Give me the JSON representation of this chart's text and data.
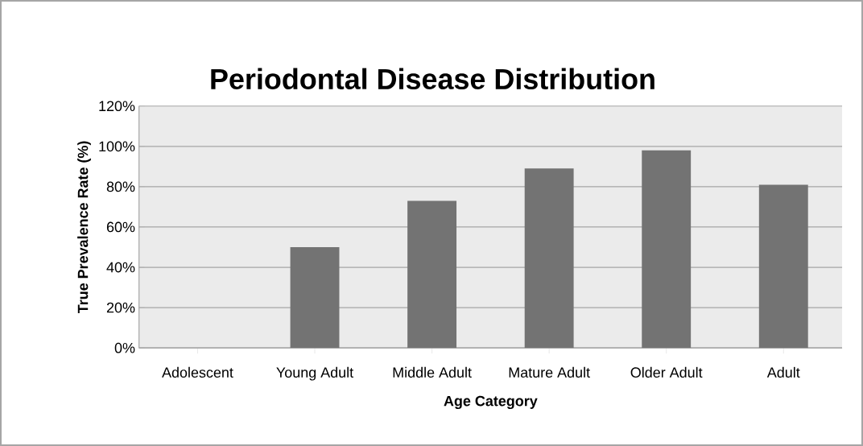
{
  "chart_data": {
    "type": "bar",
    "title": "Periodontal Disease Distribution",
    "xlabel": "Age Category",
    "ylabel": "True Prevalence  Rate (%)",
    "categories": [
      "Adolescent",
      "Young Adult",
      "Middle Adult",
      "Mature Adult",
      "Older Adult",
      "Adult"
    ],
    "values": [
      0,
      50,
      73,
      89,
      98,
      81
    ],
    "color": "#737373",
    "ylim": [
      0,
      120
    ],
    "yticks": [
      {
        "value": 0,
        "label": "0%"
      },
      {
        "value": 20,
        "label": "20%"
      },
      {
        "value": 40,
        "label": "40%"
      },
      {
        "value": 60,
        "label": "60%"
      },
      {
        "value": 80,
        "label": "80%"
      },
      {
        "value": 100,
        "label": "100%"
      },
      {
        "value": 120,
        "label": "120%"
      }
    ],
    "grid": "y"
  }
}
